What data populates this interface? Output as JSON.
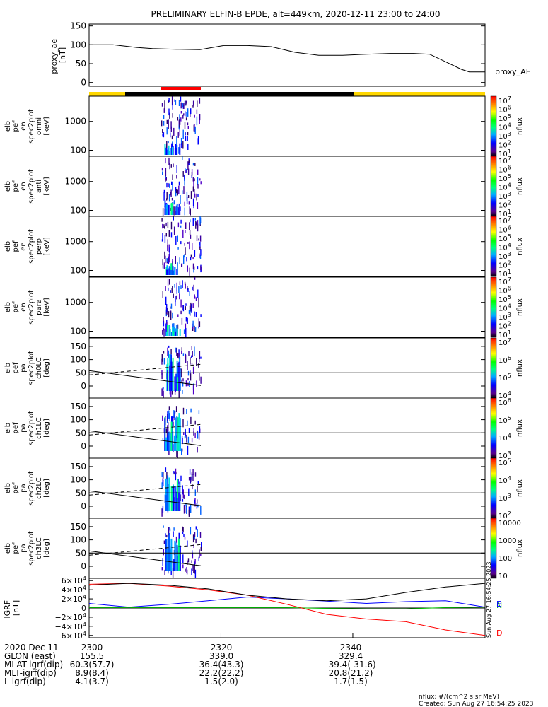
{
  "title": "PRELIMINARY ELFIN-B EPDE, alt=449km, 2020-12-11 23:00 to 24:00",
  "colors": {
    "yellow": "#FFD700",
    "black": "#000000",
    "red": "#FF0000",
    "green": "#00C000",
    "blue": "#0000FF"
  },
  "chart_data": [
    {
      "type": "line",
      "ylabel": "proxy_ae\n[nT]",
      "series_label": "proxy_AE",
      "yticks": [
        "150",
        "100",
        "50",
        "0"
      ],
      "ylim": [
        -10,
        155
      ],
      "x_minutes": [
        0,
        6,
        12,
        16,
        22,
        28,
        34,
        40,
        46,
        52,
        58,
        64,
        70,
        76,
        82,
        86,
        90,
        94,
        96,
        100
      ],
      "values": [
        100,
        100,
        93,
        90,
        88,
        87,
        98,
        98,
        95,
        80,
        72,
        72,
        75,
        77,
        77,
        75,
        55,
        35,
        28,
        28
      ]
    },
    {
      "type": "heatmap",
      "panels": [
        {
          "ylabel": "elb\npef\nen\nspec2plot\nomni\n[keV]",
          "yticks": [
            "1000",
            "100"
          ],
          "cbar_ticks": [
            "10^7",
            "10^6",
            "10^5",
            "10^4",
            "10^3",
            "10^2",
            "10^1"
          ],
          "cbar_label": "nflux"
        },
        {
          "ylabel": "elb\npef\nen\nspec2plot\nanti\n[keV]",
          "yticks": [
            "1000",
            "100"
          ],
          "cbar_ticks": [
            "10^7",
            "10^6",
            "10^5",
            "10^4",
            "10^3",
            "10^2",
            "10^1"
          ],
          "cbar_label": "nflux"
        },
        {
          "ylabel": "elb\npef\nen\nspec2plot\nperp\n[keV]",
          "yticks": [
            "1000",
            "100"
          ],
          "cbar_ticks": [
            "10^7",
            "10^6",
            "10^5",
            "10^4",
            "10^3",
            "10^2",
            "10^1"
          ],
          "cbar_label": "nflux"
        },
        {
          "ylabel": "elb\npef\nen\nspec2plot\npara\n[keV]",
          "yticks": [
            "1000",
            "100"
          ],
          "cbar_ticks": [
            "10^7",
            "10^6",
            "10^5",
            "10^4",
            "10^3",
            "10^2",
            "10^1"
          ],
          "cbar_label": "nflux"
        },
        {
          "ylabel": "elb\npef\npa\nspec2plot\nch0LC\n[deg]",
          "yticks": [
            "150",
            "100",
            "50",
            "0"
          ],
          "cbar_ticks": [
            "10^7",
            "10^6",
            "10^5",
            "10^4"
          ],
          "cbar_label": "nflux"
        },
        {
          "ylabel": "elb\npef\npa\nspec2plot\nch1LC\n[deg]",
          "yticks": [
            "150",
            "100",
            "50",
            "0"
          ],
          "cbar_ticks": [
            "10^6",
            "10^5",
            "10^4",
            "10^3"
          ],
          "cbar_label": "nflux"
        },
        {
          "ylabel": "elb\npef\npa\nspec2plot\nch2LC\n[deg]",
          "yticks": [
            "150",
            "100",
            "50",
            "0"
          ],
          "cbar_ticks": [
            "10^5",
            "10^4",
            "10^3",
            "10^2"
          ],
          "cbar_label": "nflux"
        },
        {
          "ylabel": "elb\npef\npa\nspec2plot\nch3LC\n[deg]",
          "yticks": [
            "150",
            "100",
            "50",
            "0"
          ],
          "cbar_ticks": [
            "10000",
            "1000",
            "100",
            "10"
          ],
          "cbar_label": "nflux"
        }
      ]
    },
    {
      "type": "line",
      "ylabel": "IGRF\n[nT]",
      "yticks": [
        "6×10^4",
        "4×10^4",
        "2×10^4",
        "0",
        "−2×10^4",
        "−4×10^4",
        "−6×10^4"
      ],
      "ylim": [
        -65000,
        65000
      ],
      "x_minutes": [
        0,
        10,
        20,
        30,
        40,
        50,
        60,
        70,
        80,
        90,
        100
      ],
      "series": [
        {
          "name": "N",
          "color": "#00C000",
          "values": [
            1000,
            1000,
            1000,
            1000,
            1000,
            1000,
            -1000,
            -2000,
            -2000,
            1000,
            2000
          ]
        },
        {
          "name": "E",
          "color": "#0000FF",
          "values": [
            10000,
            2000,
            8000,
            16000,
            24000,
            20000,
            15000,
            10000,
            14000,
            16000,
            2000
          ]
        },
        {
          "name": "D",
          "color": "#FF0000",
          "values": [
            52000,
            54000,
            48000,
            40000,
            28000,
            8000,
            -14000,
            -24000,
            -30000,
            -48000,
            -60000
          ]
        },
        {
          "name": "",
          "color": "#000000",
          "values": [
            50000,
            54000,
            50000,
            42000,
            28000,
            20000,
            16000,
            20000,
            34000,
            46000,
            54000
          ]
        }
      ],
      "right_labels": [
        "N",
        "E",
        "D"
      ],
      "timestamp": "Sun Aug 27 16:54:25 2023"
    }
  ],
  "xaxis": {
    "rows": [
      {
        "label": "2020 Dec 11",
        "v": [
          "2300",
          "2320",
          "2340"
        ]
      },
      {
        "label": "GLON (east)",
        "v": [
          "155.5",
          "339.0",
          "329.4"
        ]
      },
      {
        "label": "MLAT-igrf(dip)",
        "v": [
          "60.3(57.7)",
          "36.4(43.3)",
          "-39.4(-31.6)"
        ]
      },
      {
        "label": "MLT-igrf(dip)",
        "v": [
          "8.9(8.4)",
          "22.2(22.2)",
          "20.8(21.2)"
        ]
      },
      {
        "label": "L-igrf(dip)",
        "v": [
          "4.1(3.7)",
          "1.5(2.0)",
          "1.7(1.5)"
        ]
      }
    ]
  },
  "footer": {
    "units": "nflux: #/(cm^2 s sr MeV)",
    "created": "Created: Sun Aug 27 16:54:25 2023"
  }
}
